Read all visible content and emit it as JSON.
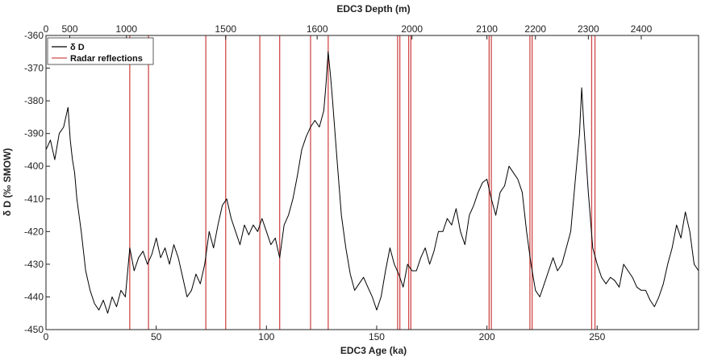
{
  "chart_data": {
    "type": "line",
    "title": "",
    "xlabel": "EDC3 Age (ka)",
    "ylabel": "δ D (‰ SMOW)",
    "top_xlabel": "EDC3 Depth (m)",
    "xlim": [
      0,
      296
    ],
    "ylim": [
      -450,
      -360
    ],
    "x_ticks": [
      0,
      50,
      100,
      150,
      200,
      250
    ],
    "y_ticks": [
      -450,
      -440,
      -430,
      -420,
      -410,
      -400,
      -390,
      -380,
      -370,
      -360
    ],
    "top_ticks": [
      {
        "age": 0,
        "label": "0"
      },
      {
        "age": 10.8,
        "label": "500"
      },
      {
        "age": 36.5,
        "label": "1000"
      },
      {
        "age": 81.5,
        "label": "1500"
      },
      {
        "age": 123,
        "label": "1600"
      },
      {
        "age": 166,
        "label": "2000"
      },
      {
        "age": 200,
        "label": "2100"
      },
      {
        "age": 222,
        "label": "2200"
      },
      {
        "age": 246,
        "label": "2300"
      },
      {
        "age": 270,
        "label": "2400"
      }
    ],
    "grid": false,
    "legend_position": "top-left",
    "series": [
      {
        "name": "δ D",
        "color": "#000000",
        "x": [
          0,
          2,
          4,
          6,
          8,
          10,
          11,
          12,
          13,
          14,
          16,
          18,
          20,
          22,
          24,
          26,
          28,
          30,
          32,
          34,
          36,
          38,
          40,
          42,
          44,
          46,
          48,
          50,
          52,
          54,
          56,
          58,
          60,
          62,
          64,
          66,
          68,
          70,
          72,
          74,
          76,
          78,
          80,
          82,
          84,
          86,
          88,
          90,
          92,
          94,
          96,
          98,
          100,
          102,
          104,
          106,
          108,
          110,
          112,
          114,
          116,
          118,
          120,
          122,
          124,
          126,
          127,
          128,
          129,
          130,
          132,
          134,
          136,
          138,
          140,
          142,
          144,
          146,
          148,
          150,
          152,
          154,
          156,
          158,
          160,
          162,
          164,
          166,
          168,
          170,
          172,
          174,
          176,
          178,
          180,
          182,
          184,
          186,
          188,
          190,
          192,
          194,
          196,
          198,
          200,
          202,
          204,
          206,
          208,
          210,
          212,
          214,
          216,
          218,
          220,
          222,
          224,
          226,
          228,
          230,
          232,
          234,
          236,
          238,
          240,
          242,
          243,
          244,
          246,
          248,
          250,
          252,
          254,
          256,
          258,
          260,
          262,
          264,
          266,
          268,
          270,
          272,
          274,
          276,
          278,
          280,
          282,
          284,
          286,
          288,
          290,
          292,
          294,
          296
        ],
        "y": [
          -395,
          -392,
          -398,
          -390,
          -388,
          -382,
          -392,
          -398,
          -402,
          -410,
          -420,
          -432,
          -438,
          -442,
          -444,
          -441,
          -445,
          -440,
          -443,
          -438,
          -440,
          -425,
          -432,
          -428,
          -426,
          -430,
          -427,
          -422,
          -428,
          -425,
          -430,
          -424,
          -428,
          -434,
          -440,
          -438,
          -433,
          -436,
          -430,
          -420,
          -425,
          -418,
          -412,
          -410,
          -416,
          -420,
          -424,
          -418,
          -421,
          -418,
          -420,
          -416,
          -420,
          -424,
          -422,
          -428,
          -418,
          -415,
          -410,
          -403,
          -395,
          -391,
          -388,
          -386,
          -388,
          -383,
          -375,
          -365,
          -372,
          -380,
          -398,
          -415,
          -425,
          -433,
          -438,
          -436,
          -434,
          -437,
          -440,
          -444,
          -440,
          -432,
          -425,
          -430,
          -433,
          -437,
          -430,
          -432,
          -432,
          -428,
          -425,
          -430,
          -426,
          -420,
          -420,
          -416,
          -418,
          -413,
          -420,
          -424,
          -415,
          -412,
          -408,
          -405,
          -404,
          -410,
          -415,
          -408,
          -406,
          -400,
          -402,
          -404,
          -408,
          -420,
          -430,
          -438,
          -440,
          -436,
          -432,
          -428,
          -432,
          -430,
          -425,
          -420,
          -405,
          -390,
          -376,
          -388,
          -408,
          -425,
          -430,
          -434,
          -436,
          -434,
          -435,
          -437,
          -430,
          -432,
          -434,
          -437,
          -438,
          -438,
          -441,
          -443,
          -440,
          -436,
          -430,
          -425,
          -418,
          -422,
          -414,
          -420,
          -430,
          -432
        ]
      }
    ],
    "radar_reflections": {
      "name": "Radar reflections",
      "color": "#d04a4a",
      "ages": [
        38,
        46.5,
        72.5,
        81.5,
        97,
        106,
        120,
        128,
        159.5,
        160.5,
        164.5,
        165.5,
        201,
        202,
        219.5,
        220.5,
        247.5,
        249
      ]
    }
  }
}
